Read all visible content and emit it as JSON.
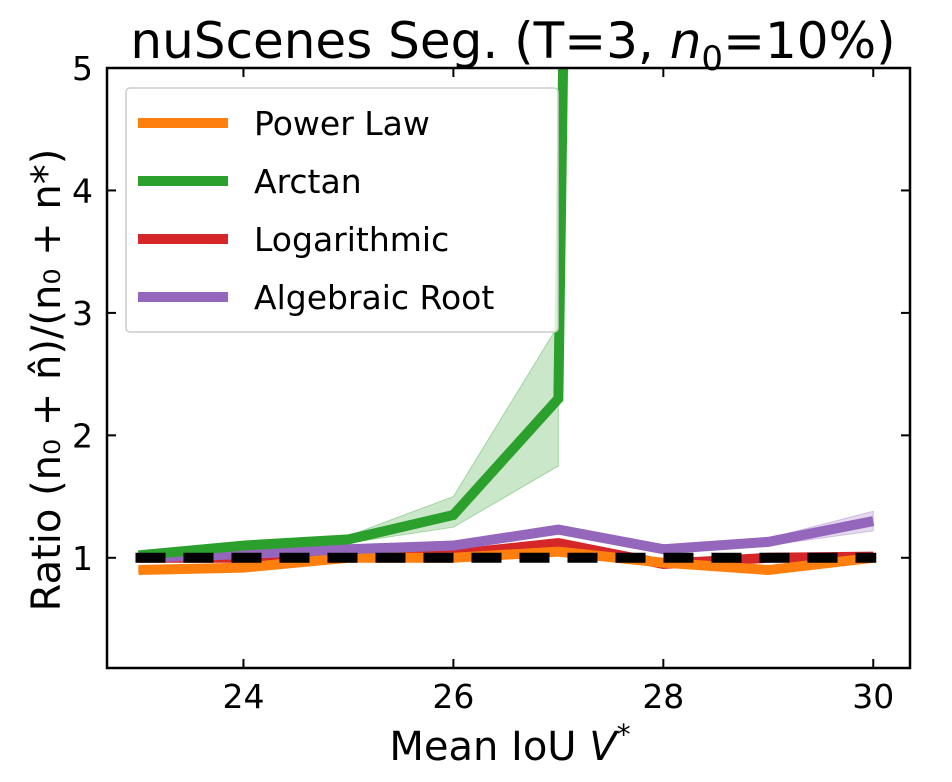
{
  "chart_data": {
    "type": "line",
    "title_main": "nuScenes Seg. (T=3, ",
    "title_var": "n",
    "title_sub": "0",
    "title_tail": "=10%)",
    "xlabel_text": "Mean IoU ",
    "xlabel_var": "V",
    "xlabel_sup": "*",
    "ylabel": "Ratio (n₀ + n̂)/(n₀ + n*)",
    "xlim": [
      22.7,
      30.35
    ],
    "ylim": [
      0.1,
      5.0
    ],
    "xticks": [
      24,
      26,
      28,
      30
    ],
    "xtick_labels": [
      "24",
      "26",
      "28",
      "30"
    ],
    "yticks": [
      1,
      2,
      3,
      4,
      5
    ],
    "ytick_labels": [
      "1",
      "2",
      "3",
      "4",
      "5"
    ],
    "x": [
      23,
      24,
      25,
      26,
      27,
      28,
      29,
      30
    ],
    "reference_line": {
      "y": 1.0,
      "style": "dashed",
      "color": "#000000"
    },
    "series": [
      {
        "name": "Power Law",
        "color": "#ff7f0e",
        "values": [
          0.9,
          0.92,
          1.0,
          1.0,
          1.05,
          0.96,
          0.9,
          1.0
        ],
        "band_lower": [
          0.88,
          0.9,
          0.98,
          0.98,
          1.02,
          0.94,
          0.88,
          0.98
        ],
        "band_upper": [
          0.92,
          0.94,
          1.02,
          1.02,
          1.08,
          0.98,
          0.92,
          1.02
        ]
      },
      {
        "name": "Arctan",
        "color": "#2ca02c",
        "values": [
          1.02,
          1.1,
          1.15,
          1.35,
          2.3,
          null,
          null,
          null
        ],
        "overshoot_x": 27.05,
        "band_lower": [
          1.0,
          1.08,
          1.12,
          1.25,
          1.75
        ],
        "band_upper": [
          1.04,
          1.12,
          1.18,
          1.5,
          2.9
        ]
      },
      {
        "name": "Logarithmic",
        "color": "#d62728",
        "values": [
          1.0,
          1.0,
          1.02,
          1.03,
          1.12,
          0.95,
          1.0,
          1.01
        ],
        "band_lower": [
          0.99,
          0.99,
          1.0,
          1.01,
          1.09,
          0.93,
          0.98,
          0.99
        ],
        "band_upper": [
          1.01,
          1.01,
          1.04,
          1.05,
          1.15,
          0.97,
          1.02,
          1.03
        ]
      },
      {
        "name": "Algebraic Root",
        "color": "#9467bd",
        "values": [
          1.0,
          1.03,
          1.07,
          1.1,
          1.23,
          1.07,
          1.13,
          1.3
        ],
        "band_lower": [
          0.99,
          1.01,
          1.05,
          1.08,
          1.2,
          1.05,
          1.1,
          1.22
        ],
        "band_upper": [
          1.01,
          1.05,
          1.09,
          1.12,
          1.26,
          1.09,
          1.16,
          1.38
        ]
      }
    ],
    "legend_position": "top-left"
  }
}
